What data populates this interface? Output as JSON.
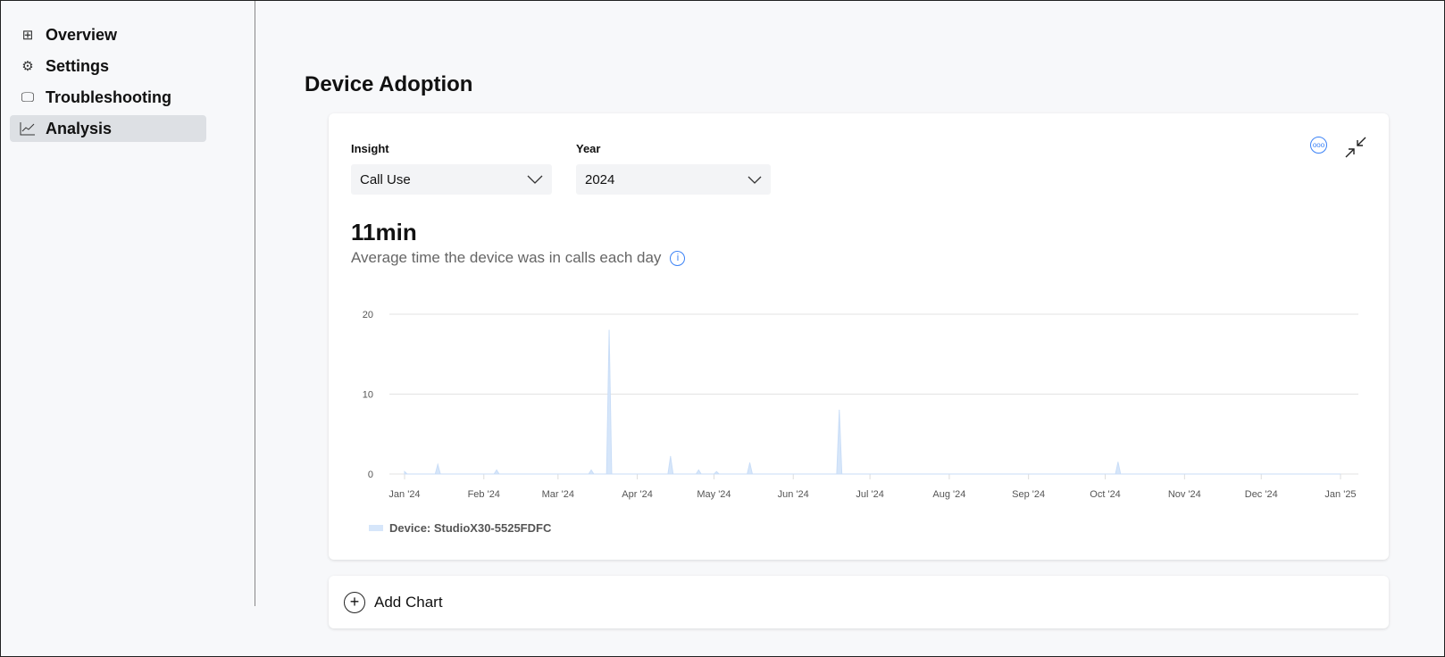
{
  "sidebar": {
    "items": [
      {
        "label": "Overview",
        "icon": "grid-icon"
      },
      {
        "label": "Settings",
        "icon": "gear-icon"
      },
      {
        "label": "Troubleshooting",
        "icon": "monitor-tools-icon"
      },
      {
        "label": "Analysis",
        "icon": "line-chart-icon",
        "active": true
      }
    ]
  },
  "page": {
    "title": "Device Adoption"
  },
  "card": {
    "insight_label": "Insight",
    "insight_value": "Call Use",
    "year_label": "Year",
    "year_value": "2024",
    "metric": "11min",
    "metric_desc": "Average time the device was in calls each day"
  },
  "add_chart": {
    "label": "Add Chart"
  },
  "chart_data": {
    "type": "area",
    "ylim": [
      0,
      20
    ],
    "yticks": [
      0,
      10,
      20
    ],
    "xlim": [
      "2024-01-01",
      "2025-01-01"
    ],
    "xticks": [
      "Jan '24",
      "Feb '24",
      "Mar '24",
      "Apr '24",
      "May '24",
      "Jun '24",
      "Jul '24",
      "Aug '24",
      "Sep '24",
      "Oct '24",
      "Nov '24",
      "Dec '24",
      "Jan '25"
    ],
    "grid": true,
    "legend_position": "bottom-left",
    "color": "#d6e6fa",
    "series": [
      {
        "name": "Device: StudioX30-5525FDFC",
        "points": [
          [
            "2024-01-01",
            0.3
          ],
          [
            "2024-01-14",
            1.2
          ],
          [
            "2024-02-06",
            0.5
          ],
          [
            "2024-03-14",
            0.5
          ],
          [
            "2024-03-21",
            18
          ],
          [
            "2024-04-14",
            2.2
          ],
          [
            "2024-04-25",
            0.5
          ],
          [
            "2024-05-02",
            0.3
          ],
          [
            "2024-05-15",
            1.4
          ],
          [
            "2024-06-19",
            8
          ],
          [
            "2024-10-06",
            1.5
          ]
        ]
      }
    ]
  }
}
